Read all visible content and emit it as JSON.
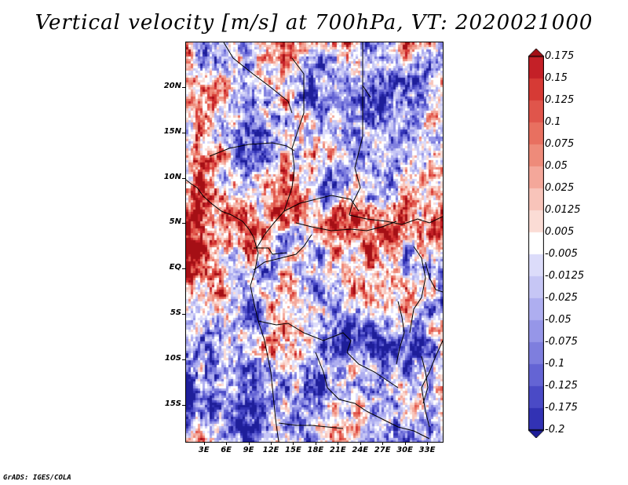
{
  "title": "Vertical velocity [m/s] at 700hPa, VT: 2020021000",
  "credit": "GrADS: IGES/COLA",
  "map": {
    "lat_range": [
      -19,
      25
    ],
    "lon_range": [
      0.5,
      35
    ],
    "lat_ticks": [
      {
        "value": 20,
        "label": "20N"
      },
      {
        "value": 15,
        "label": "15N"
      },
      {
        "value": 10,
        "label": "10N"
      },
      {
        "value": 5,
        "label": "5N"
      },
      {
        "value": 0,
        "label": "EQ"
      },
      {
        "value": -5,
        "label": "5S"
      },
      {
        "value": -10,
        "label": "10S"
      },
      {
        "value": -15,
        "label": "15S"
      }
    ],
    "lon_ticks": [
      {
        "value": 3,
        "label": "3E"
      },
      {
        "value": 6,
        "label": "6E"
      },
      {
        "value": 9,
        "label": "9E"
      },
      {
        "value": 12,
        "label": "12E"
      },
      {
        "value": 15,
        "label": "15E"
      },
      {
        "value": 18,
        "label": "18E"
      },
      {
        "value": 21,
        "label": "21E"
      },
      {
        "value": 24,
        "label": "24E"
      },
      {
        "value": 27,
        "label": "27E"
      },
      {
        "value": 30,
        "label": "30E"
      },
      {
        "value": 33,
        "label": "33E"
      }
    ]
  },
  "colorbar": {
    "levels": [
      "0.175",
      "0.15",
      "0.125",
      "0.1",
      "0.075",
      "0.05",
      "0.025",
      "0.0125",
      "0.005",
      "-0.005",
      "-0.0125",
      "-0.025",
      "-0.05",
      "-0.075",
      "-0.1",
      "-0.125",
      "-0.175",
      "-0.2"
    ],
    "colors": [
      "#a50f15",
      "#c42027",
      "#d63a35",
      "#e0554b",
      "#e87060",
      "#ee8b7a",
      "#f4a79a",
      "#f8c4ba",
      "#fbdcd5",
      "#ffffff",
      "#dcdcfa",
      "#c6c6f5",
      "#aeaef0",
      "#9696e8",
      "#7e7ede",
      "#6464d4",
      "#4a4ac6",
      "#3232b4",
      "#1e1e9a"
    ]
  }
}
